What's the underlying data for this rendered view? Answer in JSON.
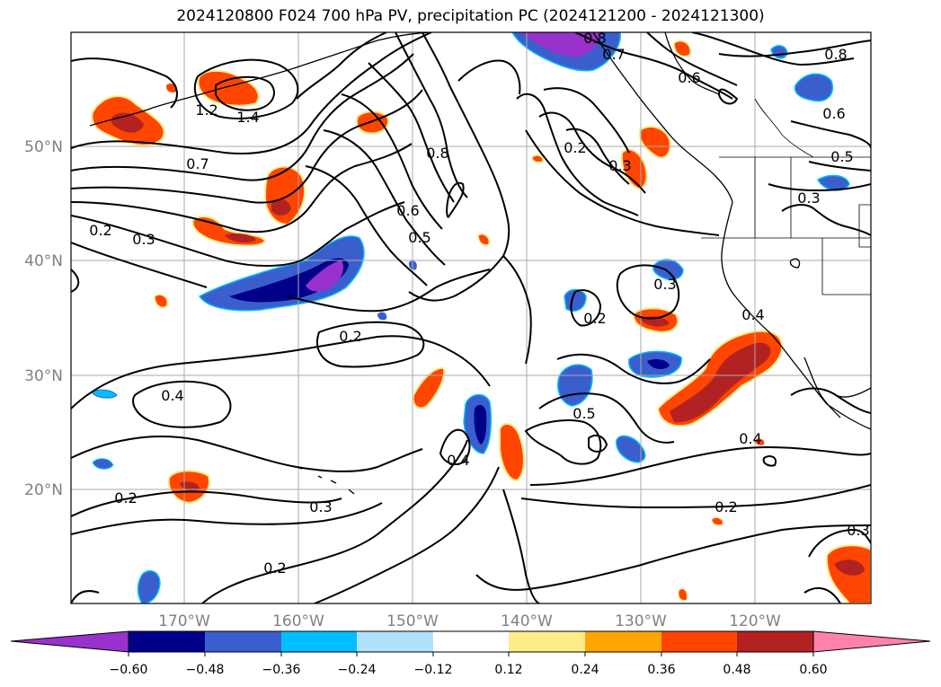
{
  "title": "2024120800 F024 700 hPa PV, precipitation PC (2024121200 - 2024121300)",
  "lat_labels": [
    "50°N",
    "40°N",
    "30°N",
    "20°N"
  ],
  "lon_labels": [
    "170°W",
    "160°W",
    "150°W",
    "140°W",
    "130°W",
    "120°W"
  ],
  "contour_labels": [
    "0.8",
    "0.8",
    "0.7",
    "0.6",
    "0.6",
    "1.4",
    "1.2",
    "0.7",
    "0.8",
    "0.6",
    "0.5",
    "0.2",
    "0.3",
    "0.5",
    "0.3",
    "0.2",
    "0.3",
    "0.2",
    "0.3",
    "0.4",
    "0.2",
    "0.4",
    "0.5",
    "0.4",
    "0.4",
    "0.2",
    "0.3",
    "0.2",
    "0.3",
    "0.2"
  ],
  "colorbar": {
    "ticks": [
      "−0.60",
      "−0.48",
      "−0.36",
      "−0.24",
      "−0.12",
      "0.12",
      "0.24",
      "0.36",
      "0.48",
      "0.60"
    ],
    "colors": [
      "#9932cc",
      "#00008b",
      "#3a5fcd",
      "#00bfff",
      "#b0e2ff",
      "#ffffff",
      "#ffec8b",
      "#ffa500",
      "#ff4500",
      "#b22222",
      "#ff82ab"
    ]
  },
  "colors": {
    "grid": "#aaaaaa",
    "tick_label": "#808080",
    "contour": "#000000",
    "coast": "#000000"
  }
}
